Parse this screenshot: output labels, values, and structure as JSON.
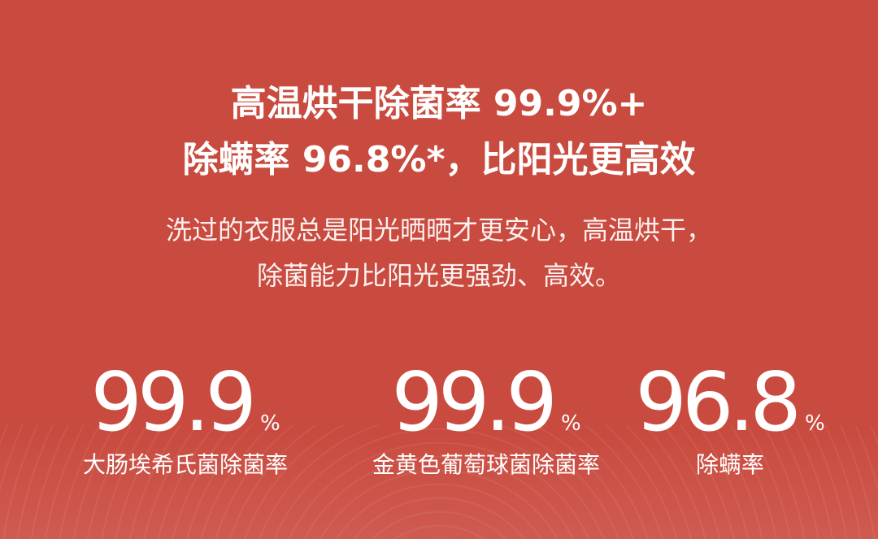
{
  "headline": {
    "line1": "高温烘干除菌率 99.9%+",
    "line2": "除螨率 96.8%*，比阳光更高效"
  },
  "subtitle": {
    "line1": "洗过的衣服总是阳光晒晒才更安心，高温烘干，",
    "line2": "除菌能力比阳光更强劲、高效。"
  },
  "stats": [
    {
      "value": "99.9",
      "unit": "%",
      "label": "大肠埃希氏菌除菌率"
    },
    {
      "value": "99.9",
      "unit": "%",
      "label": "金黄色葡萄球菌除菌率"
    },
    {
      "value": "96.8",
      "unit": "%",
      "label": "除螨率"
    }
  ],
  "colors": {
    "background": "#c94a3e",
    "text": "#ffffff"
  }
}
